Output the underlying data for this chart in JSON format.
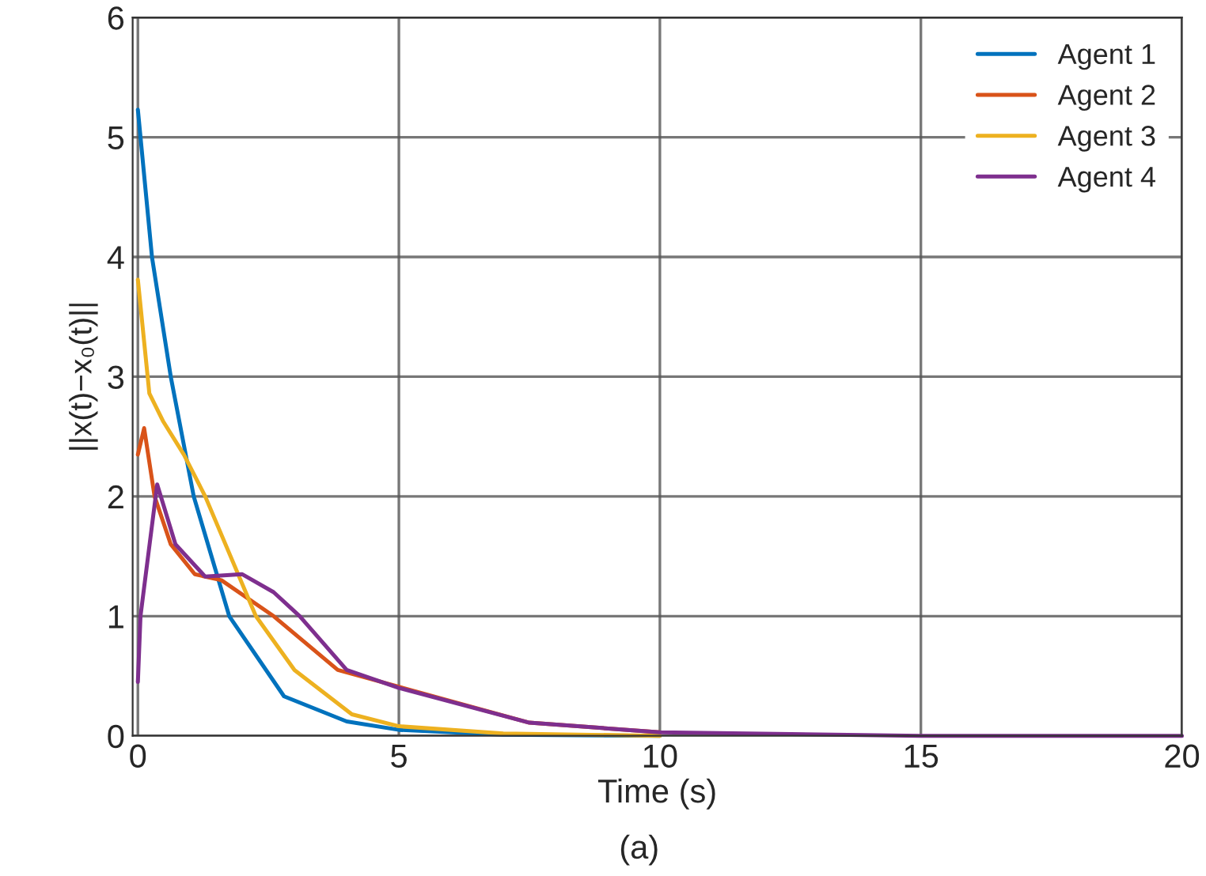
{
  "chart_data": {
    "type": "line",
    "xlabel": "Time (s)",
    "ylabel": "||x(t)−x₀(t)||",
    "annotations": [
      "(a)"
    ],
    "xlim": [
      -0.1,
      20
    ],
    "xticks": [
      0,
      5,
      10,
      15,
      20
    ],
    "ylim": [
      0,
      6
    ],
    "yticks": [
      0,
      1,
      2,
      3,
      4,
      5,
      6
    ],
    "grid": true,
    "legend": "top right",
    "series": [
      {
        "name": "Agent 1",
        "color": "#0072bd",
        "x": [
          0,
          0.27,
          0.63,
          1.07,
          1.75,
          2.8,
          4.0,
          5,
          7,
          10
        ],
        "values": [
          5.23,
          4,
          3,
          2,
          1,
          0.33,
          0.12,
          0.05,
          0.01,
          0
        ]
      },
      {
        "name": "Agent 2",
        "color": "#d95319",
        "x": [
          0,
          0.12,
          0.32,
          0.63,
          1.09,
          1.6,
          2.6,
          3.83,
          5,
          7.5,
          10
        ],
        "values": [
          2.35,
          2.57,
          2,
          1.6,
          1.35,
          1.3,
          1,
          0.55,
          0.41,
          0.11,
          0.03
        ]
      },
      {
        "name": "Agent 3",
        "color": "#edb120",
        "x": [
          0,
          0.22,
          0.48,
          0.88,
          1.29,
          2.26,
          3.0,
          4.1,
          5,
          7,
          10
        ],
        "values": [
          3.81,
          2.86,
          2.63,
          2.35,
          2,
          1,
          0.55,
          0.18,
          0.08,
          0.02,
          0
        ]
      },
      {
        "name": "Agent 4",
        "color": "#7e2f8e",
        "x": [
          0,
          0.05,
          0.37,
          0.72,
          1.29,
          2.0,
          2.6,
          3.1,
          4.0,
          5,
          7.5,
          10,
          15,
          20
        ],
        "values": [
          0.45,
          1.0,
          2.1,
          1.6,
          1.33,
          1.35,
          1.2,
          1,
          0.55,
          0.4,
          0.11,
          0.03,
          0,
          0
        ]
      }
    ]
  }
}
